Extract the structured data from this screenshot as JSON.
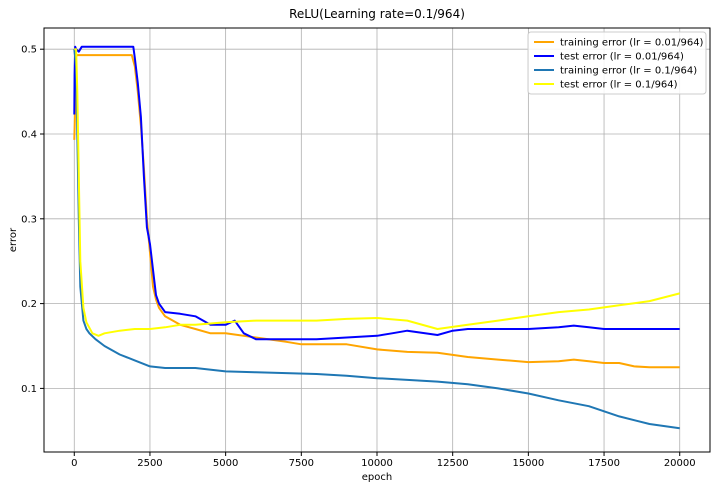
{
  "chart_data": {
    "type": "line",
    "title": "ReLU(Learning rate=0.1/964)",
    "xlabel": "epoch",
    "ylabel": "error",
    "xlim": [
      -1000,
      21000
    ],
    "ylim": [
      0.025,
      0.525
    ],
    "xticks": [
      0,
      2500,
      5000,
      7500,
      10000,
      12500,
      15000,
      17500,
      20000
    ],
    "xtick_labels": [
      "0",
      "2500",
      "5000",
      "7500",
      "10000",
      "12500",
      "15000",
      "17500",
      "20000"
    ],
    "yticks": [
      0.1,
      0.2,
      0.3,
      0.4,
      0.5
    ],
    "ytick_labels": [
      "0.1",
      "0.2",
      "0.3",
      "0.4",
      "0.5"
    ],
    "grid": true,
    "legend_position": "top-right",
    "series": [
      {
        "name": "training error (lr = 0.01/964)",
        "color": "#ffa500",
        "points": [
          [
            0,
            0.393
          ],
          [
            20,
            0.42
          ],
          [
            50,
            0.49
          ],
          [
            80,
            0.493
          ],
          [
            500,
            0.493
          ],
          [
            1000,
            0.493
          ],
          [
            1500,
            0.493
          ],
          [
            1900,
            0.493
          ],
          [
            2000,
            0.48
          ],
          [
            2100,
            0.45
          ],
          [
            2200,
            0.41
          ],
          [
            2300,
            0.36
          ],
          [
            2400,
            0.3
          ],
          [
            2500,
            0.26
          ],
          [
            2600,
            0.22
          ],
          [
            2700,
            0.205
          ],
          [
            2800,
            0.195
          ],
          [
            3000,
            0.185
          ],
          [
            3500,
            0.175
          ],
          [
            4000,
            0.17
          ],
          [
            4500,
            0.165
          ],
          [
            5000,
            0.165
          ],
          [
            6000,
            0.16
          ],
          [
            7000,
            0.155
          ],
          [
            7500,
            0.152
          ],
          [
            8000,
            0.152
          ],
          [
            9000,
            0.152
          ],
          [
            10000,
            0.146
          ],
          [
            11000,
            0.143
          ],
          [
            12000,
            0.142
          ],
          [
            13000,
            0.137
          ],
          [
            14000,
            0.134
          ],
          [
            15000,
            0.131
          ],
          [
            16000,
            0.132
          ],
          [
            16500,
            0.134
          ],
          [
            17000,
            0.132
          ],
          [
            17500,
            0.13
          ],
          [
            18000,
            0.13
          ],
          [
            18500,
            0.126
          ],
          [
            19000,
            0.125
          ],
          [
            20000,
            0.125
          ]
        ]
      },
      {
        "name": "test error (lr = 0.01/964)",
        "color": "#0000ff",
        "points": [
          [
            0,
            0.423
          ],
          [
            10,
            0.47
          ],
          [
            30,
            0.503
          ],
          [
            60,
            0.5
          ],
          [
            150,
            0.497
          ],
          [
            250,
            0.503
          ],
          [
            1000,
            0.503
          ],
          [
            1500,
            0.503
          ],
          [
            1950,
            0.503
          ],
          [
            2000,
            0.49
          ],
          [
            2100,
            0.46
          ],
          [
            2200,
            0.42
          ],
          [
            2300,
            0.35
          ],
          [
            2400,
            0.29
          ],
          [
            2500,
            0.27
          ],
          [
            2600,
            0.24
          ],
          [
            2700,
            0.21
          ],
          [
            2800,
            0.2
          ],
          [
            3000,
            0.19
          ],
          [
            3500,
            0.188
          ],
          [
            4000,
            0.185
          ],
          [
            4500,
            0.175
          ],
          [
            5000,
            0.175
          ],
          [
            5300,
            0.18
          ],
          [
            5600,
            0.165
          ],
          [
            6000,
            0.158
          ],
          [
            7000,
            0.158
          ],
          [
            8000,
            0.158
          ],
          [
            9000,
            0.16
          ],
          [
            10000,
            0.162
          ],
          [
            10500,
            0.165
          ],
          [
            11000,
            0.168
          ],
          [
            12000,
            0.163
          ],
          [
            12500,
            0.168
          ],
          [
            13000,
            0.17
          ],
          [
            14000,
            0.17
          ],
          [
            15000,
            0.17
          ],
          [
            16000,
            0.172
          ],
          [
            16500,
            0.174
          ],
          [
            17000,
            0.172
          ],
          [
            17500,
            0.17
          ],
          [
            18000,
            0.17
          ],
          [
            19000,
            0.17
          ],
          [
            20000,
            0.17
          ]
        ]
      },
      {
        "name": "training error (lr = 0.1/964)",
        "color": "#1f77b4",
        "points": [
          [
            0,
            0.5
          ],
          [
            60,
            0.48
          ],
          [
            100,
            0.4
          ],
          [
            150,
            0.3
          ],
          [
            200,
            0.22
          ],
          [
            300,
            0.18
          ],
          [
            400,
            0.17
          ],
          [
            500,
            0.165
          ],
          [
            700,
            0.158
          ],
          [
            1000,
            0.15
          ],
          [
            1500,
            0.14
          ],
          [
            2000,
            0.133
          ],
          [
            2500,
            0.126
          ],
          [
            3000,
            0.124
          ],
          [
            4000,
            0.124
          ],
          [
            5000,
            0.12
          ],
          [
            6000,
            0.119
          ],
          [
            7000,
            0.118
          ],
          [
            8000,
            0.117
          ],
          [
            9000,
            0.115
          ],
          [
            10000,
            0.112
          ],
          [
            11000,
            0.11
          ],
          [
            12000,
            0.108
          ],
          [
            13000,
            0.105
          ],
          [
            14000,
            0.1
          ],
          [
            15000,
            0.094
          ],
          [
            16000,
            0.086
          ],
          [
            17000,
            0.079
          ],
          [
            18000,
            0.067
          ],
          [
            19000,
            0.058
          ],
          [
            20000,
            0.053
          ]
        ]
      },
      {
        "name": "test error (lr = 0.1/964)",
        "color": "#ffff00",
        "points": [
          [
            0,
            0.5
          ],
          [
            60,
            0.5
          ],
          [
            100,
            0.45
          ],
          [
            150,
            0.35
          ],
          [
            200,
            0.25
          ],
          [
            300,
            0.195
          ],
          [
            400,
            0.178
          ],
          [
            600,
            0.165
          ],
          [
            800,
            0.162
          ],
          [
            1000,
            0.165
          ],
          [
            1500,
            0.168
          ],
          [
            2000,
            0.17
          ],
          [
            2500,
            0.17
          ],
          [
            3000,
            0.172
          ],
          [
            3500,
            0.175
          ],
          [
            4000,
            0.175
          ],
          [
            5000,
            0.178
          ],
          [
            6000,
            0.18
          ],
          [
            7000,
            0.18
          ],
          [
            8000,
            0.18
          ],
          [
            9000,
            0.182
          ],
          [
            10000,
            0.183
          ],
          [
            11000,
            0.18
          ],
          [
            12000,
            0.17
          ],
          [
            13000,
            0.175
          ],
          [
            14000,
            0.18
          ],
          [
            15000,
            0.185
          ],
          [
            16000,
            0.19
          ],
          [
            17000,
            0.193
          ],
          [
            18000,
            0.198
          ],
          [
            19000,
            0.203
          ],
          [
            20000,
            0.212
          ]
        ]
      }
    ]
  }
}
